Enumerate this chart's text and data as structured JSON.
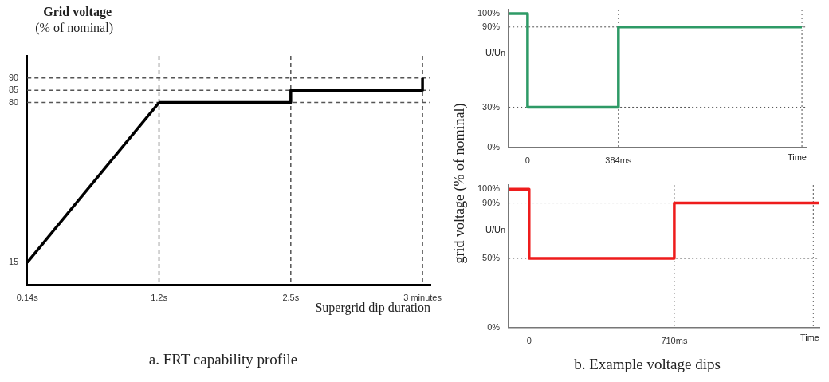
{
  "chart_data": [
    {
      "type": "line",
      "ylabel": "Grid voltage\n(% of nominal)",
      "xlabel": "Supergrid dip duration",
      "categories": [
        "0.14s",
        "1.2s",
        "2.5s",
        "3 minutes"
      ],
      "series": [
        {
          "type": "line",
          "color": "#000000",
          "values": [
            15,
            80,
            null,
            null
          ]
        },
        {
          "type": "step",
          "color": "#000000",
          "values": [
            null,
            80,
            85,
            90
          ]
        }
      ],
      "ylim": [
        6,
        99
      ],
      "yticks": [
        15,
        80,
        85,
        90
      ],
      "ref_lines": [
        {
          "axis": "y",
          "value": 80,
          "line_style": "dashed"
        },
        {
          "axis": "y",
          "value": 85,
          "line_style": "dashed"
        },
        {
          "axis": "y",
          "value": 90,
          "line_style": "dashed"
        },
        {
          "axis": "x",
          "value": "1.2s",
          "line_style": "dashed"
        },
        {
          "axis": "x",
          "value": "2.5s",
          "line_style": "dashed"
        },
        {
          "axis": "x",
          "value": "3 minutes",
          "line_style": "dashed"
        }
      ],
      "annotations": [
        "a. FRT capability profile"
      ]
    },
    {
      "type": "line",
      "ylabel": "U/Un",
      "xlabel": "Time",
      "series": [
        {
          "color": "#2e9a66",
          "x": [
            -80,
            0,
            0,
            384,
            384,
            1160
          ],
          "values": [
            100,
            100,
            30,
            30,
            90,
            90
          ]
        }
      ],
      "xlim": [
        -80,
        1180
      ],
      "xticks": [
        {
          "value": 0,
          "label": "0"
        },
        {
          "value": 384,
          "label": "384ms"
        }
      ],
      "ylim": [
        0,
        103
      ],
      "yticks": [
        {
          "value": 0,
          "label": "0%"
        },
        {
          "value": 30,
          "label": "30%"
        },
        {
          "value": 90,
          "label": "90%"
        },
        {
          "value": 100,
          "label": "100%"
        }
      ],
      "ref_lines": [
        {
          "axis": "y",
          "value": 90,
          "line_style": "dotted"
        },
        {
          "axis": "y",
          "value": 30,
          "line_style": "dotted"
        },
        {
          "axis": "x",
          "value": 384,
          "line_style": "dotted"
        },
        {
          "axis": "x",
          "value": 1160,
          "line_style": "dotted"
        }
      ],
      "annotations": [
        "grid voltage (% of nominal)"
      ]
    },
    {
      "type": "line",
      "ylabel": "U/Un",
      "xlabel": "Time",
      "series": [
        {
          "color": "#ee1c1c",
          "x": [
            -100,
            0,
            0,
            710,
            710,
            1420
          ],
          "values": [
            100,
            100,
            50,
            50,
            90,
            90
          ]
        }
      ],
      "xlim": [
        -100,
        1420
      ],
      "xticks": [
        {
          "value": 0,
          "label": "0"
        },
        {
          "value": 710,
          "label": "710ms"
        }
      ],
      "ylim": [
        0,
        103
      ],
      "yticks": [
        {
          "value": 0,
          "label": "0%"
        },
        {
          "value": 50,
          "label": "50%"
        },
        {
          "value": 90,
          "label": "90%"
        },
        {
          "value": 100,
          "label": "100%"
        }
      ],
      "ref_lines": [
        {
          "axis": "y",
          "value": 90,
          "line_style": "dotted"
        },
        {
          "axis": "y",
          "value": 50,
          "line_style": "dotted"
        },
        {
          "axis": "x",
          "value": 710,
          "line_style": "dotted"
        },
        {
          "axis": "x",
          "value": 1390,
          "line_style": "dotted"
        }
      ],
      "annotations": [
        "b. Example voltage dips"
      ]
    }
  ]
}
